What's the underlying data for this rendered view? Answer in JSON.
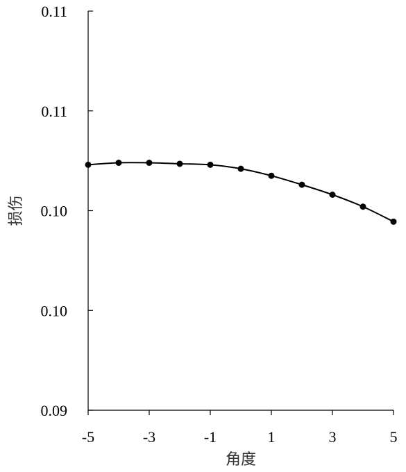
{
  "chart_data": {
    "type": "line",
    "xlabel": "角度",
    "ylabel": "损伤",
    "x_ticks": [
      "-5",
      "-3",
      "-1",
      "1",
      "3",
      "5"
    ],
    "x_tick_values": [
      -5,
      -3,
      -1,
      1,
      3,
      5
    ],
    "y_ticks": [
      "0.09",
      "0.10",
      "0.10",
      "0.11",
      "0.11"
    ],
    "xlim": [
      -5,
      5
    ],
    "ylim": [
      0.094,
      0.114
    ],
    "grid": false,
    "series": [
      {
        "color": "#000000",
        "marker": "circle",
        "x": [
          -5,
          -4,
          -3,
          -2,
          -1,
          0,
          1,
          2,
          3,
          4,
          5
        ],
        "values": [
          0.1063,
          0.1064,
          0.1064,
          0.10635,
          0.1063,
          0.1061,
          0.10575,
          0.1053,
          0.1048,
          0.1042,
          0.10345
        ]
      }
    ]
  }
}
